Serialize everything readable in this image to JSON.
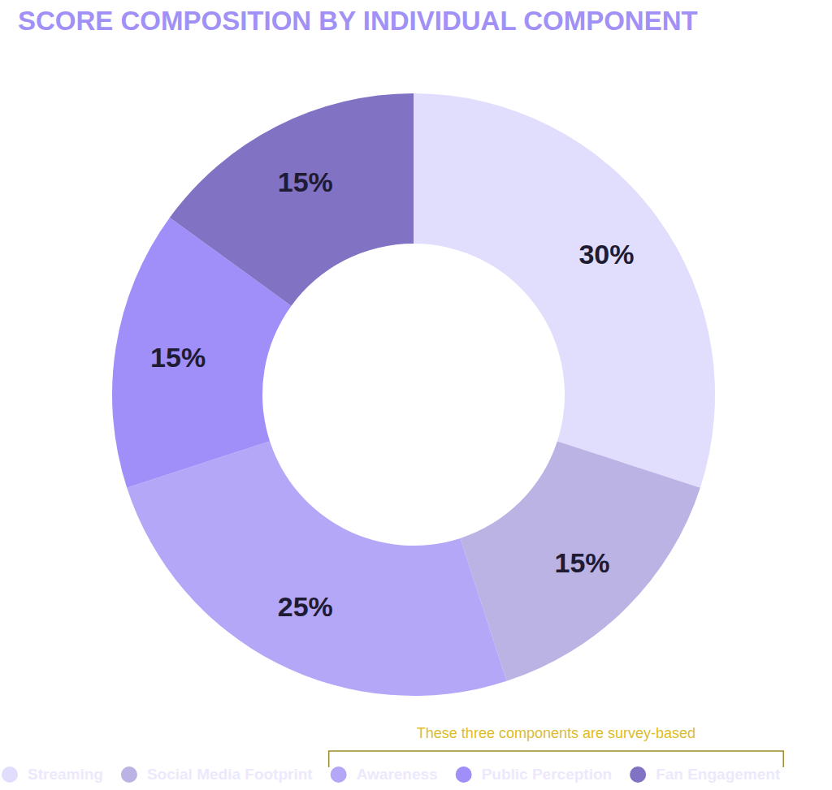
{
  "chart_data": {
    "type": "donut",
    "title": "SCORE COMPOSITION BY INDIVIDUAL COMPONENT",
    "categories": [
      "Streaming",
      "Social Media Footprint",
      "Awareness",
      "Public Perception",
      "Fan Engagement"
    ],
    "values": [
      30,
      15,
      25,
      15,
      15
    ],
    "value_labels": [
      "30%",
      "15%",
      "25%",
      "15%",
      "15%"
    ],
    "colors": [
      "#e1ddfc",
      "#bbb3e4",
      "#b4a7f8",
      "#a08ff8",
      "#8172c4"
    ],
    "data_labels": true,
    "legend": "bottom",
    "annotation": "These three components are survey-based"
  }
}
